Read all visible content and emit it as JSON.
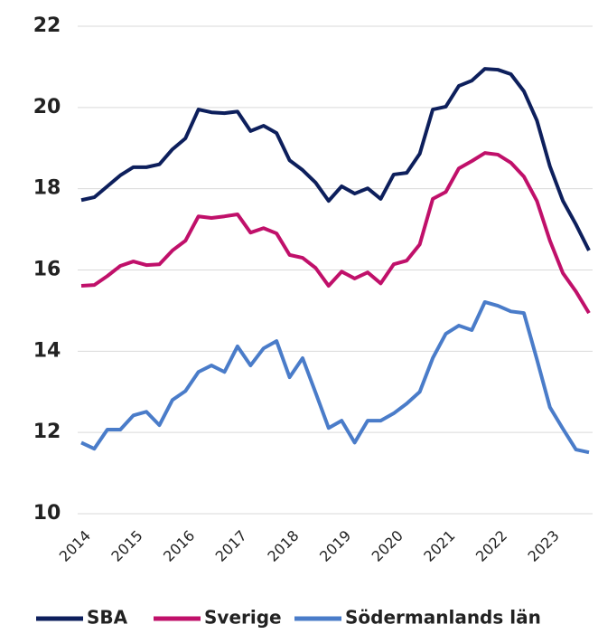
{
  "chart_data": {
    "type": "line",
    "categories": [
      "2014",
      null,
      null,
      null,
      "2015",
      null,
      null,
      null,
      "2016",
      null,
      null,
      null,
      "2017",
      null,
      null,
      null,
      "2018",
      null,
      null,
      null,
      "2019",
      null,
      null,
      null,
      "2020",
      null,
      null,
      null,
      "2021",
      null,
      null,
      null,
      "2022",
      null,
      null,
      null,
      "2023",
      null,
      null,
      null
    ],
    "series": [
      {
        "name": "SBA",
        "color": "#0d1f5c",
        "values": [
          17.72,
          17.79,
          18.06,
          18.33,
          18.53,
          18.53,
          18.6,
          18.97,
          19.24,
          19.95,
          19.88,
          19.86,
          19.9,
          19.42,
          19.55,
          19.37,
          18.7,
          18.46,
          18.15,
          17.7,
          18.06,
          17.88,
          18.01,
          17.75,
          18.35,
          18.39,
          18.86,
          19.95,
          20.02,
          20.53,
          20.66,
          20.95,
          20.93,
          20.82,
          20.4,
          19.68,
          18.55,
          17.7,
          17.12,
          16.48
        ]
      },
      {
        "name": "Sverige",
        "color": "#c0106a",
        "values": [
          15.61,
          15.63,
          15.85,
          16.1,
          16.21,
          16.12,
          16.14,
          16.48,
          16.72,
          17.32,
          17.28,
          17.32,
          17.37,
          16.92,
          17.03,
          16.9,
          16.37,
          16.3,
          16.05,
          15.61,
          15.96,
          15.79,
          15.94,
          15.67,
          16.14,
          16.23,
          16.63,
          17.75,
          17.92,
          18.5,
          18.68,
          18.88,
          18.84,
          18.64,
          18.3,
          17.7,
          16.72,
          15.92,
          15.47,
          14.94
        ]
      },
      {
        "name": "Södermanlands län",
        "color": "#4a7cc9",
        "values": [
          11.75,
          11.6,
          12.07,
          12.07,
          12.42,
          12.51,
          12.18,
          12.8,
          13.02,
          13.49,
          13.65,
          13.49,
          14.12,
          13.65,
          14.07,
          14.25,
          13.36,
          13.83,
          12.98,
          12.11,
          12.29,
          11.75,
          12.29,
          12.29,
          12.47,
          12.71,
          13.0,
          13.83,
          14.43,
          14.63,
          14.52,
          15.21,
          15.12,
          14.98,
          14.94,
          13.8,
          12.62,
          12.09,
          11.58,
          11.51
        ]
      }
    ],
    "ylim": [
      10,
      22
    ],
    "yticks": [
      10,
      12,
      14,
      16,
      18,
      20,
      22
    ],
    "grid": true,
    "legend": "bottom"
  }
}
